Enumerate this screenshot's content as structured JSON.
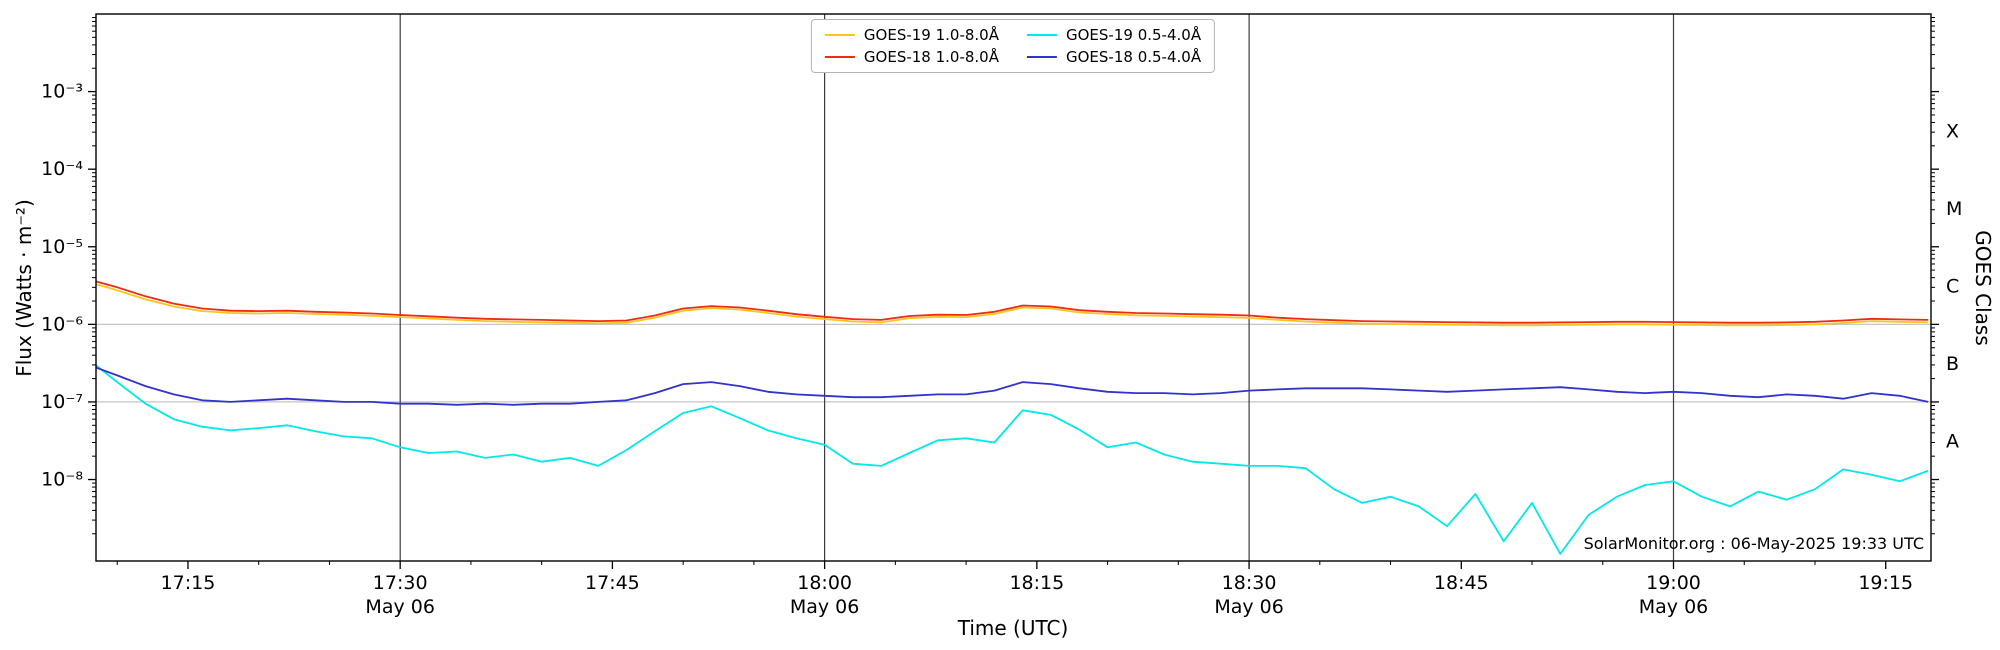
{
  "chart_data": {
    "type": "line",
    "title": "",
    "annotation": "SolarMonitor.org : 06-May-2025 19:33 UTC",
    "x_axis": {
      "label": "Time (UTC)",
      "units": "minutes after 17:00 UTC on 06-May-2025",
      "range_min": [
        8.5,
        138.2
      ],
      "minor_tick_step_min": 5,
      "ticks": [
        {
          "t": 15,
          "label": "17:15"
        },
        {
          "t": 30,
          "label": "17:30"
        },
        {
          "t": 45,
          "label": "17:45"
        },
        {
          "t": 60,
          "label": "18:00"
        },
        {
          "t": 75,
          "label": "18:15"
        },
        {
          "t": 90,
          "label": "18:30"
        },
        {
          "t": 105,
          "label": "18:45"
        },
        {
          "t": 120,
          "label": "19:00"
        },
        {
          "t": 135,
          "label": "19:15"
        }
      ],
      "day_ticks": [
        {
          "t": 30,
          "label": "May 06"
        },
        {
          "t": 60,
          "label": "May 06"
        },
        {
          "t": 90,
          "label": "May 06"
        },
        {
          "t": 120,
          "label": "May 06"
        }
      ]
    },
    "y_axis": {
      "label": "Flux (Watts · m⁻²)",
      "scale": "log",
      "ylim": [
        1e-09,
        0.01
      ],
      "log_range": [
        -9.05,
        -2.0
      ],
      "ticks": [
        {
          "exp": -3,
          "label": "10⁻³"
        },
        {
          "exp": -4,
          "label": "10⁻⁴"
        },
        {
          "exp": -5,
          "label": "10⁻⁵"
        },
        {
          "exp": -6,
          "label": "10⁻⁶"
        },
        {
          "exp": -7,
          "label": "10⁻⁷"
        },
        {
          "exp": -8,
          "label": "10⁻⁸"
        }
      ]
    },
    "right_axis": {
      "label": "GOES Class",
      "classes": [
        {
          "label": "X",
          "exp": -3.5
        },
        {
          "label": "M",
          "exp": -4.5
        },
        {
          "label": "C",
          "exp": -5.5
        },
        {
          "label": "B",
          "exp": -6.5
        },
        {
          "label": "A",
          "exp": -7.5
        }
      ]
    },
    "gridlines": {
      "h_flux": [
        1e-06,
        1e-07
      ],
      "v_minutes": [
        30,
        60,
        90,
        120
      ]
    },
    "legend_position": "upper center",
    "series": [
      {
        "name": "GOES-19 1.0-8.0Å",
        "color": "#ffc41e",
        "points": [
          [
            8,
            3.5e-06
          ],
          [
            10,
            2.75e-06
          ],
          [
            12,
            2.1e-06
          ],
          [
            14,
            1.7e-06
          ],
          [
            16,
            1.48e-06
          ],
          [
            18,
            1.4e-06
          ],
          [
            20,
            1.38e-06
          ],
          [
            22,
            1.4e-06
          ],
          [
            24,
            1.36e-06
          ],
          [
            26,
            1.33e-06
          ],
          [
            28,
            1.29e-06
          ],
          [
            30,
            1.24e-06
          ],
          [
            32,
            1.19e-06
          ],
          [
            34,
            1.14e-06
          ],
          [
            36,
            1.1e-06
          ],
          [
            38,
            1.08e-06
          ],
          [
            40,
            1.06e-06
          ],
          [
            42,
            1.05e-06
          ],
          [
            44,
            1.03e-06
          ],
          [
            46,
            1.05e-06
          ],
          [
            48,
            1.22e-06
          ],
          [
            50,
            1.5e-06
          ],
          [
            52,
            1.62e-06
          ],
          [
            54,
            1.55e-06
          ],
          [
            56,
            1.4e-06
          ],
          [
            58,
            1.26e-06
          ],
          [
            60,
            1.17e-06
          ],
          [
            62,
            1.09e-06
          ],
          [
            64,
            1.06e-06
          ],
          [
            66,
            1.2e-06
          ],
          [
            68,
            1.25e-06
          ],
          [
            70,
            1.24e-06
          ],
          [
            72,
            1.36e-06
          ],
          [
            74,
            1.65e-06
          ],
          [
            76,
            1.6e-06
          ],
          [
            78,
            1.42e-06
          ],
          [
            80,
            1.36e-06
          ],
          [
            82,
            1.31e-06
          ],
          [
            84,
            1.29e-06
          ],
          [
            86,
            1.26e-06
          ],
          [
            88,
            1.24e-06
          ],
          [
            90,
            1.21e-06
          ],
          [
            92,
            1.14e-06
          ],
          [
            94,
            1.09e-06
          ],
          [
            96,
            1.05e-06
          ],
          [
            98,
            1.02e-06
          ],
          [
            100,
            1.01e-06
          ],
          [
            102,
            1e-06
          ],
          [
            104,
            9.9e-07
          ],
          [
            106,
            9.8e-07
          ],
          [
            108,
            9.7e-07
          ],
          [
            110,
            9.7e-07
          ],
          [
            112,
            9.8e-07
          ],
          [
            114,
            9.9e-07
          ],
          [
            116,
            1e-06
          ],
          [
            118,
            1e-06
          ],
          [
            120,
            9.9e-07
          ],
          [
            122,
            9.8e-07
          ],
          [
            124,
            9.7e-07
          ],
          [
            126,
            9.7e-07
          ],
          [
            128,
            9.8e-07
          ],
          [
            130,
            1e-06
          ],
          [
            132,
            1.04e-06
          ],
          [
            134,
            1.1e-06
          ],
          [
            136,
            1.08e-06
          ],
          [
            138,
            1.06e-06
          ]
        ]
      },
      {
        "name": "GOES-19 0.5-4.0Å",
        "color": "#00e8e8",
        "points": [
          [
            8,
            3.5e-07
          ],
          [
            10,
            1.8e-07
          ],
          [
            12,
            9.5e-08
          ],
          [
            14,
            6e-08
          ],
          [
            16,
            4.8e-08
          ],
          [
            18,
            4.3e-08
          ],
          [
            20,
            4.6e-08
          ],
          [
            22,
            5e-08
          ],
          [
            24,
            4.2e-08
          ],
          [
            26,
            3.6e-08
          ],
          [
            28,
            3.4e-08
          ],
          [
            30,
            2.6e-08
          ],
          [
            32,
            2.2e-08
          ],
          [
            34,
            2.3e-08
          ],
          [
            36,
            1.9e-08
          ],
          [
            38,
            2.1e-08
          ],
          [
            40,
            1.7e-08
          ],
          [
            42,
            1.9e-08
          ],
          [
            44,
            1.5e-08
          ],
          [
            46,
            2.4e-08
          ],
          [
            48,
            4.2e-08
          ],
          [
            50,
            7.2e-08
          ],
          [
            52,
            8.8e-08
          ],
          [
            54,
            6.2e-08
          ],
          [
            56,
            4.3e-08
          ],
          [
            58,
            3.4e-08
          ],
          [
            60,
            2.8e-08
          ],
          [
            62,
            1.6e-08
          ],
          [
            64,
            1.5e-08
          ],
          [
            66,
            2.2e-08
          ],
          [
            68,
            3.2e-08
          ],
          [
            70,
            3.4e-08
          ],
          [
            72,
            3e-08
          ],
          [
            74,
            7.8e-08
          ],
          [
            76,
            6.8e-08
          ],
          [
            78,
            4.4e-08
          ],
          [
            80,
            2.6e-08
          ],
          [
            82,
            3e-08
          ],
          [
            84,
            2.1e-08
          ],
          [
            86,
            1.7e-08
          ],
          [
            88,
            1.6e-08
          ],
          [
            90,
            1.5e-08
          ],
          [
            92,
            1.5e-08
          ],
          [
            94,
            1.4e-08
          ],
          [
            96,
            7.5e-09
          ],
          [
            98,
            5e-09
          ],
          [
            100,
            6e-09
          ],
          [
            102,
            4.5e-09
          ],
          [
            104,
            2.5e-09
          ],
          [
            106,
            6.5e-09
          ],
          [
            108,
            1.6e-09
          ],
          [
            110,
            5e-09
          ],
          [
            112,
            1.1e-09
          ],
          [
            114,
            3.5e-09
          ],
          [
            116,
            6e-09
          ],
          [
            118,
            8.5e-09
          ],
          [
            120,
            9.5e-09
          ],
          [
            122,
            6e-09
          ],
          [
            124,
            4.5e-09
          ],
          [
            126,
            7e-09
          ],
          [
            128,
            5.5e-09
          ],
          [
            130,
            7.5e-09
          ],
          [
            132,
            1.35e-08
          ],
          [
            134,
            1.15e-08
          ],
          [
            136,
            9.5e-09
          ],
          [
            138,
            1.3e-08
          ]
        ]
      },
      {
        "name": "GOES-18 1.0-8.0Å",
        "color": "#f02b10",
        "points": [
          [
            8,
            3.8e-06
          ],
          [
            10,
            3e-06
          ],
          [
            12,
            2.3e-06
          ],
          [
            14,
            1.85e-06
          ],
          [
            16,
            1.6e-06
          ],
          [
            18,
            1.5e-06
          ],
          [
            20,
            1.48e-06
          ],
          [
            22,
            1.5e-06
          ],
          [
            24,
            1.45e-06
          ],
          [
            26,
            1.42e-06
          ],
          [
            28,
            1.38e-06
          ],
          [
            30,
            1.32e-06
          ],
          [
            32,
            1.27e-06
          ],
          [
            34,
            1.22e-06
          ],
          [
            36,
            1.18e-06
          ],
          [
            38,
            1.16e-06
          ],
          [
            40,
            1.14e-06
          ],
          [
            42,
            1.12e-06
          ],
          [
            44,
            1.1e-06
          ],
          [
            46,
            1.12e-06
          ],
          [
            48,
            1.3e-06
          ],
          [
            50,
            1.6e-06
          ],
          [
            52,
            1.72e-06
          ],
          [
            54,
            1.65e-06
          ],
          [
            56,
            1.5e-06
          ],
          [
            58,
            1.35e-06
          ],
          [
            60,
            1.25e-06
          ],
          [
            62,
            1.17e-06
          ],
          [
            64,
            1.14e-06
          ],
          [
            66,
            1.28e-06
          ],
          [
            68,
            1.33e-06
          ],
          [
            70,
            1.32e-06
          ],
          [
            72,
            1.45e-06
          ],
          [
            74,
            1.75e-06
          ],
          [
            76,
            1.7e-06
          ],
          [
            78,
            1.52e-06
          ],
          [
            80,
            1.45e-06
          ],
          [
            82,
            1.4e-06
          ],
          [
            84,
            1.38e-06
          ],
          [
            86,
            1.35e-06
          ],
          [
            88,
            1.33e-06
          ],
          [
            90,
            1.3e-06
          ],
          [
            92,
            1.22e-06
          ],
          [
            94,
            1.17e-06
          ],
          [
            96,
            1.13e-06
          ],
          [
            98,
            1.1e-06
          ],
          [
            100,
            1.09e-06
          ],
          [
            102,
            1.08e-06
          ],
          [
            104,
            1.07e-06
          ],
          [
            106,
            1.06e-06
          ],
          [
            108,
            1.05e-06
          ],
          [
            110,
            1.05e-06
          ],
          [
            112,
            1.06e-06
          ],
          [
            114,
            1.07e-06
          ],
          [
            116,
            1.08e-06
          ],
          [
            118,
            1.08e-06
          ],
          [
            120,
            1.07e-06
          ],
          [
            122,
            1.06e-06
          ],
          [
            124,
            1.05e-06
          ],
          [
            126,
            1.05e-06
          ],
          [
            128,
            1.06e-06
          ],
          [
            130,
            1.08e-06
          ],
          [
            132,
            1.12e-06
          ],
          [
            134,
            1.18e-06
          ],
          [
            136,
            1.16e-06
          ],
          [
            138,
            1.14e-06
          ]
        ]
      },
      {
        "name": "GOES-18 0.5-4.0Å",
        "color": "#3232cc",
        "points": [
          [
            8,
            3e-07
          ],
          [
            10,
            2.2e-07
          ],
          [
            12,
            1.6e-07
          ],
          [
            14,
            1.25e-07
          ],
          [
            16,
            1.05e-07
          ],
          [
            18,
            1e-07
          ],
          [
            20,
            1.05e-07
          ],
          [
            22,
            1.1e-07
          ],
          [
            24,
            1.05e-07
          ],
          [
            26,
            1e-07
          ],
          [
            28,
            1e-07
          ],
          [
            30,
            9.5e-08
          ],
          [
            32,
            9.5e-08
          ],
          [
            34,
            9.2e-08
          ],
          [
            36,
            9.5e-08
          ],
          [
            38,
            9.2e-08
          ],
          [
            40,
            9.5e-08
          ],
          [
            42,
            9.5e-08
          ],
          [
            44,
            1e-07
          ],
          [
            46,
            1.05e-07
          ],
          [
            48,
            1.3e-07
          ],
          [
            50,
            1.7e-07
          ],
          [
            52,
            1.8e-07
          ],
          [
            54,
            1.6e-07
          ],
          [
            56,
            1.35e-07
          ],
          [
            58,
            1.25e-07
          ],
          [
            60,
            1.2e-07
          ],
          [
            62,
            1.15e-07
          ],
          [
            64,
            1.15e-07
          ],
          [
            66,
            1.2e-07
          ],
          [
            68,
            1.25e-07
          ],
          [
            70,
            1.25e-07
          ],
          [
            72,
            1.4e-07
          ],
          [
            74,
            1.8e-07
          ],
          [
            76,
            1.7e-07
          ],
          [
            78,
            1.5e-07
          ],
          [
            80,
            1.35e-07
          ],
          [
            82,
            1.3e-07
          ],
          [
            84,
            1.3e-07
          ],
          [
            86,
            1.25e-07
          ],
          [
            88,
            1.3e-07
          ],
          [
            90,
            1.4e-07
          ],
          [
            92,
            1.45e-07
          ],
          [
            94,
            1.5e-07
          ],
          [
            96,
            1.5e-07
          ],
          [
            98,
            1.5e-07
          ],
          [
            100,
            1.45e-07
          ],
          [
            102,
            1.4e-07
          ],
          [
            104,
            1.35e-07
          ],
          [
            106,
            1.4e-07
          ],
          [
            108,
            1.45e-07
          ],
          [
            110,
            1.5e-07
          ],
          [
            112,
            1.55e-07
          ],
          [
            114,
            1.45e-07
          ],
          [
            116,
            1.35e-07
          ],
          [
            118,
            1.3e-07
          ],
          [
            120,
            1.35e-07
          ],
          [
            122,
            1.3e-07
          ],
          [
            124,
            1.2e-07
          ],
          [
            126,
            1.15e-07
          ],
          [
            128,
            1.25e-07
          ],
          [
            130,
            1.2e-07
          ],
          [
            132,
            1.1e-07
          ],
          [
            134,
            1.3e-07
          ],
          [
            136,
            1.2e-07
          ],
          [
            138,
            1e-07
          ]
        ]
      }
    ]
  }
}
